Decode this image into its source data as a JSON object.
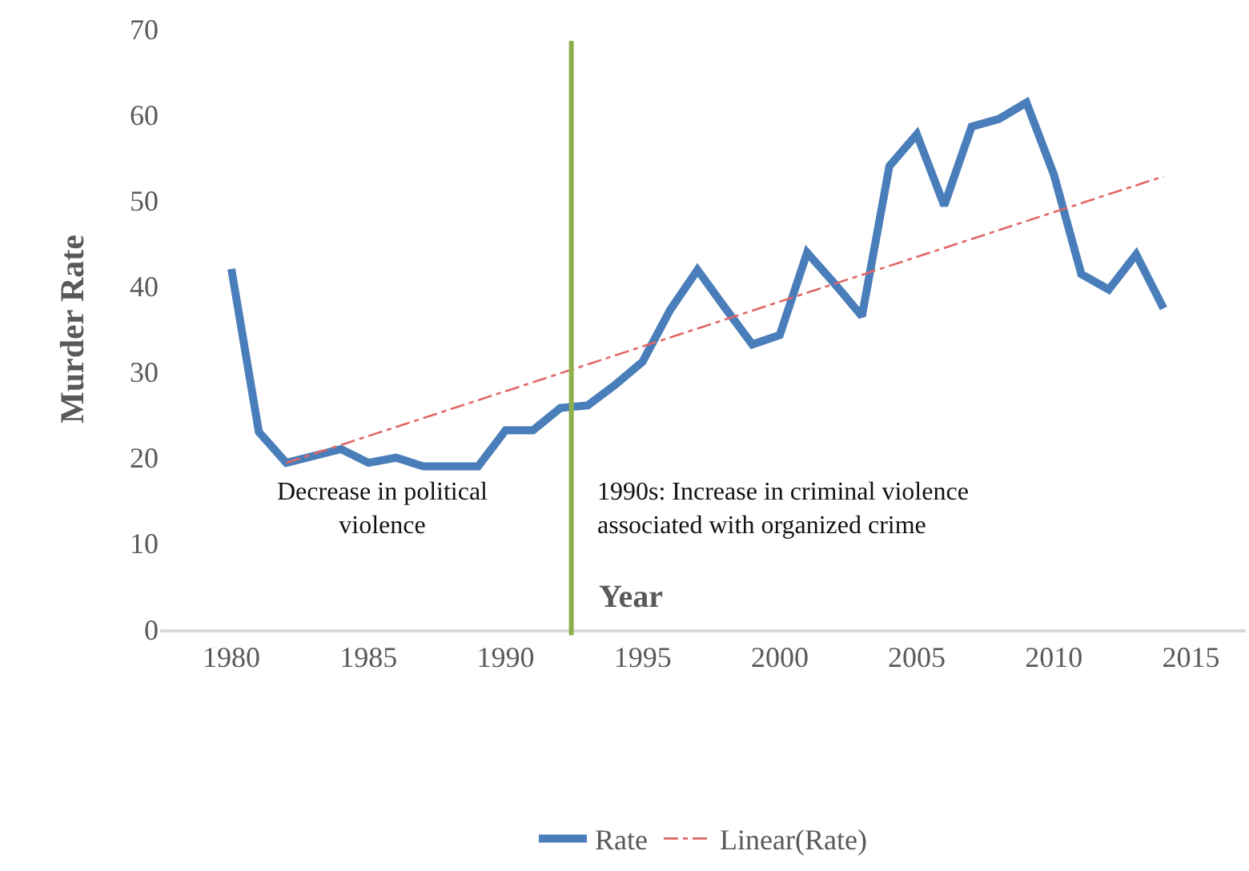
{
  "chart_data": {
    "type": "line",
    "xlabel": "Year",
    "ylabel": "Murder Rate",
    "x": [
      1980,
      1981,
      1982,
      1983,
      1984,
      1985,
      1986,
      1987,
      1988,
      1989,
      1990,
      1991,
      1992,
      1993,
      1994,
      1995,
      1996,
      1997,
      1998,
      1999,
      2000,
      2001,
      2002,
      2003,
      2004,
      2005,
      2006,
      2007,
      2008,
      2009,
      2010,
      2011,
      2012,
      2013,
      2014
    ],
    "series": [
      {
        "name": "Rate",
        "color": "#4a7ebb",
        "line_style": "solid",
        "values": [
          42,
          23,
          19.4,
          null,
          21,
          19.4,
          20,
          19,
          null,
          19,
          23.2,
          23.2,
          25.8,
          26.1,
          28.5,
          31.2,
          37.2,
          41.9,
          37.5,
          33.2,
          34.3,
          43.9,
          40.3,
          36.5,
          54,
          57.7,
          49.4,
          58.6,
          59.5,
          61.4,
          53,
          41.4,
          39.6,
          43.7,
          37.4
        ]
      },
      {
        "name": "Linear(Rate)",
        "type": "line",
        "color": "#e06666",
        "line_style": "dashdot",
        "x": [
          1982,
          2014
        ],
        "values": [
          19.4,
          52.8
        ]
      }
    ],
    "xlim": [
      1977.4,
      2017
    ],
    "xticks": [
      1980,
      1985,
      1990,
      1995,
      2000,
      2005,
      2010,
      2015
    ],
    "ylim": [
      0,
      70
    ],
    "yticks": [
      0,
      10,
      20,
      30,
      40,
      50,
      60,
      70
    ],
    "ref_lines": [
      {
        "axis": "x",
        "value": 1992.4,
        "color": "#8db04a",
        "line_style": "solid"
      }
    ],
    "annotations": [
      "Decrease in political violence",
      "1990s: Increase in criminal violence associated with organized crime"
    ],
    "legend": "bottom",
    "marker": "none"
  }
}
